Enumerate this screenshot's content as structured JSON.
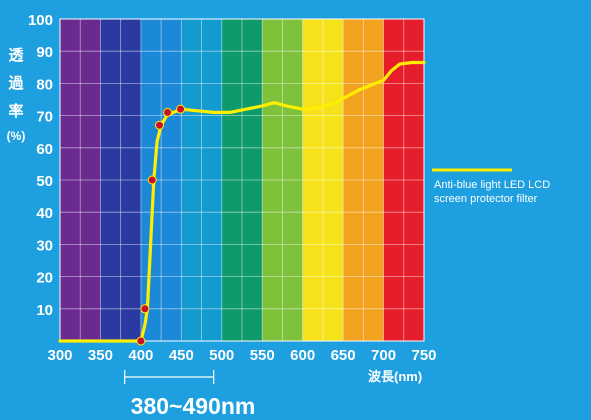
{
  "chart_data": {
    "type": "line",
    "ylabel_lines": [
      "透",
      "過",
      "率",
      "(%)"
    ],
    "xlabel": "波長(nm)",
    "range_label": "380~490nm",
    "xlim": [
      300,
      750
    ],
    "ylim": [
      0,
      100
    ],
    "x_ticks": [
      300,
      350,
      400,
      450,
      500,
      550,
      600,
      650,
      700,
      750
    ],
    "y_ticks": [
      10,
      20,
      30,
      40,
      50,
      60,
      70,
      80,
      90,
      100
    ],
    "range_bracket": [
      380,
      490
    ],
    "grid": true,
    "legend_position": "right",
    "background_spectrum": [
      {
        "from": 300,
        "to": 350,
        "color": "#6a2a8f"
      },
      {
        "from": 350,
        "to": 400,
        "color": "#2a3aa0"
      },
      {
        "from": 400,
        "to": 450,
        "color": "#1c88d8"
      },
      {
        "from": 450,
        "to": 500,
        "color": "#139bcf"
      },
      {
        "from": 500,
        "to": 550,
        "color": "#0e9a6c"
      },
      {
        "from": 550,
        "to": 600,
        "color": "#7dc23a"
      },
      {
        "from": 600,
        "to": 650,
        "color": "#f6e21a"
      },
      {
        "from": 650,
        "to": 700,
        "color": "#f2a21e"
      },
      {
        "from": 700,
        "to": 750,
        "color": "#e61e2b"
      }
    ],
    "series": [
      {
        "name": "Anti-blue light LED LCD screen protector filter",
        "name_lines": [
          "Anti-blue light LED LCD",
          "screen protector filter"
        ],
        "color": "#ffee00",
        "x": [
          300,
          340,
          395,
          400,
          405,
          408,
          412,
          416,
          420,
          425,
          432,
          440,
          450,
          470,
          490,
          510,
          530,
          550,
          565,
          580,
          600,
          620,
          640,
          655,
          670,
          685,
          700,
          710,
          720,
          735,
          750
        ],
        "y": [
          0,
          0,
          0,
          0,
          5,
          10,
          30,
          50,
          62,
          67,
          70,
          71,
          72,
          71.5,
          71,
          71,
          72,
          73,
          74,
          73,
          72,
          72.5,
          74,
          76,
          78,
          79.5,
          81,
          84,
          86,
          86.5,
          86.5
        ]
      }
    ],
    "markers": {
      "color": "#c8102e",
      "x": [
        400,
        405,
        414,
        423,
        433,
        449
      ],
      "y": [
        0,
        10,
        50,
        67,
        71,
        72
      ]
    }
  }
}
